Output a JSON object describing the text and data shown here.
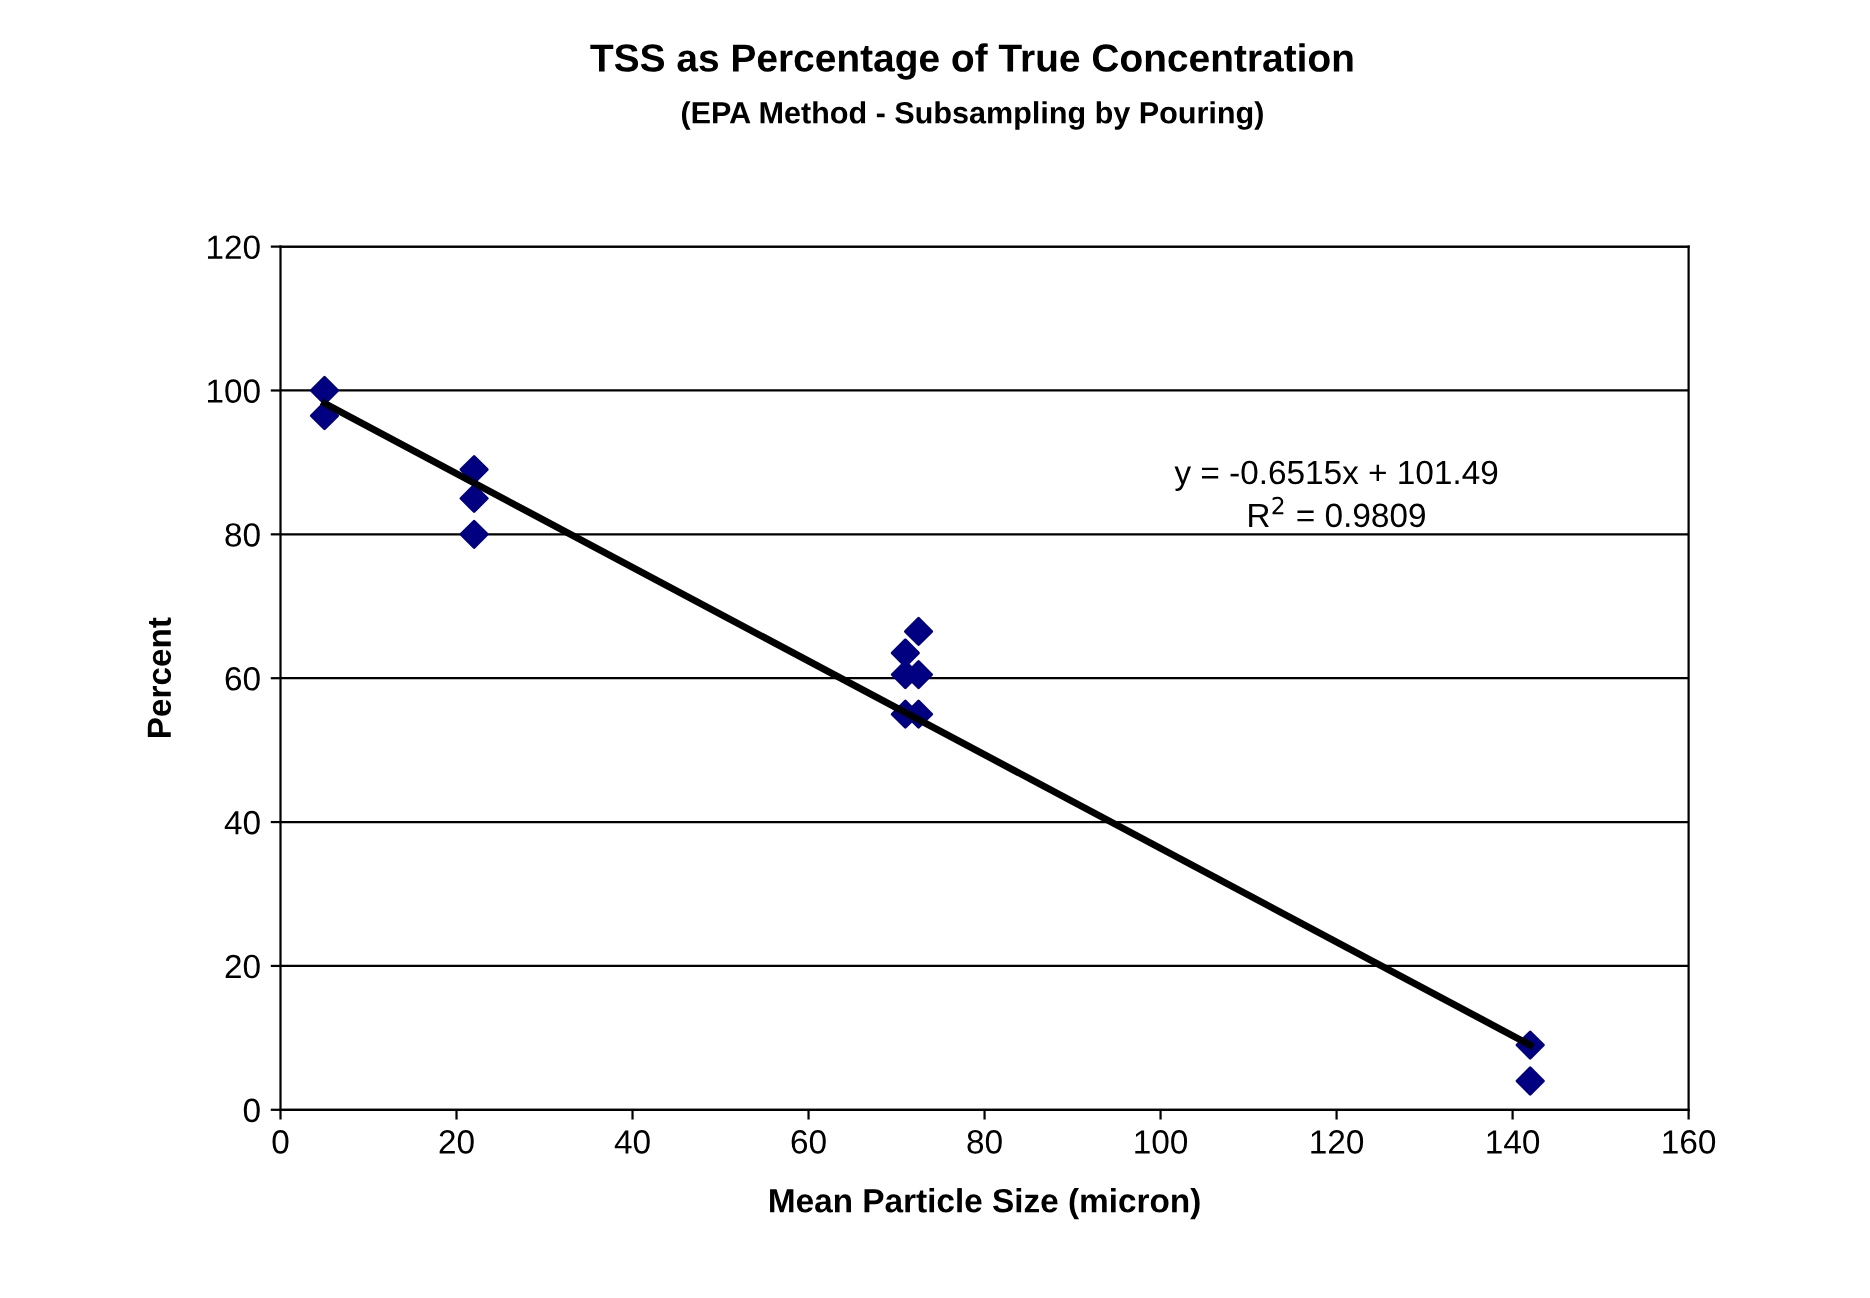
{
  "chart_data": {
    "type": "scatter",
    "title": "TSS as Percentage of True Concentration",
    "subtitle": "(EPA Method - Subsampling by Pouring)",
    "xlabel": "Mean Particle Size (micron)",
    "ylabel": "Percent",
    "xlim": [
      0,
      160
    ],
    "xticks": [
      0,
      20,
      40,
      60,
      80,
      100,
      120,
      140,
      160
    ],
    "ylim": [
      0,
      120
    ],
    "yticks": [
      0,
      20,
      40,
      60,
      80,
      100,
      120
    ],
    "grid": "y",
    "legend": false,
    "series": [
      {
        "marker": "diamond",
        "color": "#000080",
        "x": [
          5,
          5,
          22,
          22,
          22,
          71,
          71,
          71,
          72.5,
          72.5,
          72.5,
          142,
          142
        ],
        "values": [
          100,
          96.5,
          89,
          85,
          80,
          63.5,
          60.5,
          55,
          66.5,
          60.5,
          55,
          9,
          4
        ]
      },
      {
        "type": "line",
        "marker": "none",
        "color": "#000000",
        "x": [
          5,
          142
        ],
        "values": [
          98.2,
          9
        ]
      }
    ],
    "annotations": [
      "y = -0.6515x + 101.49",
      "R$^{2}$ = 0.9809"
    ]
  }
}
